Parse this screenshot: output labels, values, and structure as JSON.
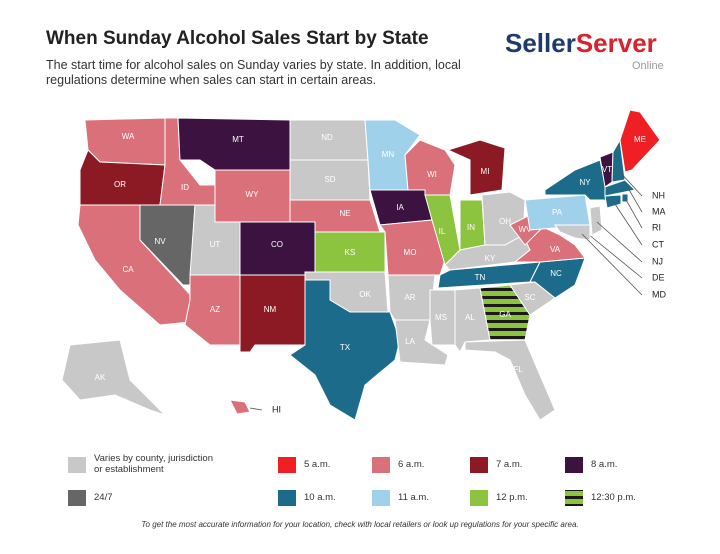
{
  "header": {
    "title": "When Sunday Alcohol Sales Start by State",
    "subtitle": "The start time for alcohol sales on Sunday varies by state. In addition, local regulations determine when sales can start in certain areas.",
    "logo": {
      "parts": [
        "Seller",
        "Server"
      ],
      "tagline": "Online"
    }
  },
  "map": {
    "states": [
      {
        "label": "WA",
        "color": "#d9707a"
      },
      {
        "label": "OR",
        "color": "#8b1a24"
      },
      {
        "label": "CA",
        "color": "#d9707a"
      },
      {
        "label": "NV",
        "color": "#666666"
      },
      {
        "label": "ID",
        "color": "#d9707a"
      },
      {
        "label": "MT",
        "color": "#3b1240"
      },
      {
        "label": "WY",
        "color": "#d9707a"
      },
      {
        "label": "UT",
        "color": "#c8c8c8"
      },
      {
        "label": "CO",
        "color": "#3b1240"
      },
      {
        "label": "AZ",
        "color": "#d9707a"
      },
      {
        "label": "NM",
        "color": "#8b1a24"
      },
      {
        "label": "ND",
        "color": "#c8c8c8"
      },
      {
        "label": "SD",
        "color": "#c8c8c8"
      },
      {
        "label": "NE",
        "color": "#d9707a"
      },
      {
        "label": "KS",
        "color": "#8cc33f"
      },
      {
        "label": "OK",
        "color": "#c8c8c8"
      },
      {
        "label": "TX",
        "color": "#1d6b8a"
      },
      {
        "label": "MN",
        "color": "#9fd2ea"
      },
      {
        "label": "IA",
        "color": "#3b1240"
      },
      {
        "label": "MO",
        "color": "#d9707a"
      },
      {
        "label": "AR",
        "color": "#c8c8c8"
      },
      {
        "label": "LA",
        "color": "#c8c8c8"
      },
      {
        "label": "WI",
        "color": "#d9707a"
      },
      {
        "label": "IL",
        "color": "#8cc33f"
      },
      {
        "label": "MI",
        "color": "#8b1a24"
      },
      {
        "label": "IN",
        "color": "#8cc33f"
      },
      {
        "label": "OH",
        "color": "#c8c8c8"
      },
      {
        "label": "KY",
        "color": "#c8c8c8"
      },
      {
        "label": "TN",
        "color": "#1d6b8a"
      },
      {
        "label": "MS",
        "color": "#c8c8c8"
      },
      {
        "label": "AL",
        "color": "#c8c8c8"
      },
      {
        "label": "GA",
        "color": "#8cc33f",
        "stripe": "#1a1a1a"
      },
      {
        "label": "FL",
        "color": "#c8c8c8"
      },
      {
        "label": "SC",
        "color": "#c8c8c8"
      },
      {
        "label": "NC",
        "color": "#1d6b8a"
      },
      {
        "label": "VA",
        "color": "#d9707a"
      },
      {
        "label": "WV",
        "color": "#d9707a"
      },
      {
        "label": "PA",
        "color": "#9fd2ea"
      },
      {
        "label": "NY",
        "color": "#1d6b8a"
      },
      {
        "label": "VT",
        "color": "#3b1240"
      },
      {
        "label": "NH",
        "color": "#1d6b8a"
      },
      {
        "label": "ME",
        "color": "#f01f24"
      },
      {
        "label": "MA",
        "color": "#1d6b8a"
      },
      {
        "label": "RI",
        "color": "#1d6b8a"
      },
      {
        "label": "CT",
        "color": "#1d6b8a"
      },
      {
        "label": "NJ",
        "color": "#c8c8c8"
      },
      {
        "label": "DE",
        "color": "#8cc33f"
      },
      {
        "label": "MD",
        "color": "#c8c8c8"
      },
      {
        "label": "AK",
        "color": "#c8c8c8"
      },
      {
        "label": "HI",
        "color": "#d9707a"
      }
    ]
  },
  "legend": [
    {
      "label": "Varies by county, jurisdiction or establishment",
      "color": "#c8c8c8"
    },
    {
      "label": "5 a.m.",
      "color": "#f01f24"
    },
    {
      "label": "6 a.m.",
      "color": "#d9707a"
    },
    {
      "label": "7 a.m.",
      "color": "#8b1a24"
    },
    {
      "label": "8 a.m.",
      "color": "#3b1240"
    },
    {
      "label": "24/7",
      "color": "#666666"
    },
    {
      "label": "10 a.m.",
      "color": "#1d6b8a"
    },
    {
      "label": "11 a.m.",
      "color": "#9fd2ea"
    },
    {
      "label": "12 p.m.",
      "color": "#8cc33f"
    },
    {
      "label": "12:30 p.m.",
      "color": "#8cc33f",
      "stripe": "#1a1a1a"
    }
  ],
  "footnote": "To get the most accurate information for your location, check with local retailers or look up regulations for your specific area."
}
